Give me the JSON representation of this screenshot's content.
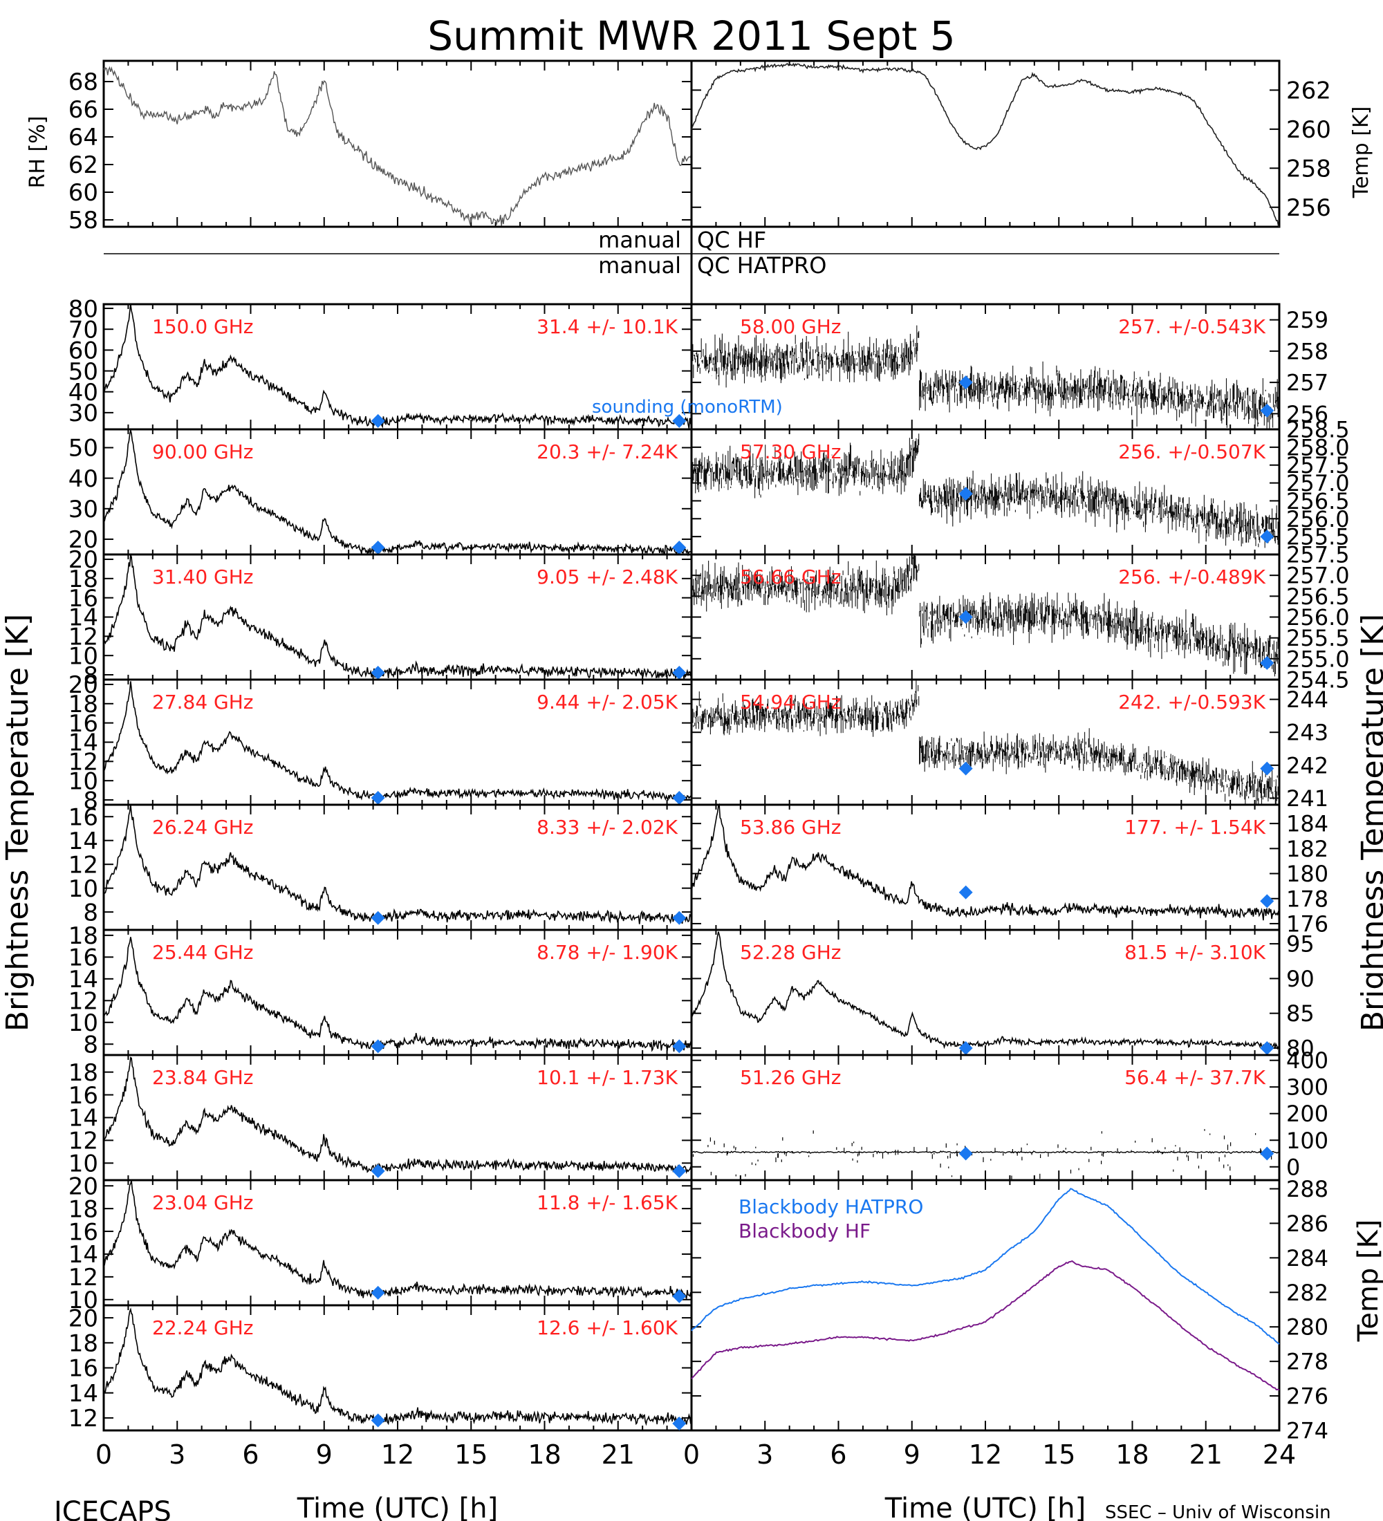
{
  "title": "Summit MWR 2011 Sept  5",
  "footer": {
    "left": "ICECAPS",
    "right": "SSEC – Univ of Wisconsin"
  },
  "time_axis": {
    "label": "Time (UTC) [h]",
    "ticks": [
      0,
      3,
      6,
      9,
      12,
      15,
      18,
      21,
      24
    ],
    "left_tick_labels": [
      "0",
      "3",
      "6",
      "9",
      "12",
      "15",
      "18",
      "21"
    ],
    "right_tick_labels": [
      "0",
      "3",
      "6",
      "9",
      "12",
      "15",
      "18",
      "21",
      "24"
    ]
  },
  "y_labels": {
    "left_bt": "Brightness Temperature [K]",
    "right_bt": "Brightness Temperature [K]",
    "rh": "RH [%]",
    "temp_top": "Temp [K]",
    "temp_bottom": "Temp [K]"
  },
  "qc": {
    "left1": "manual",
    "right1": "QC HF",
    "left2": "manual",
    "right2": "QC HATPRO"
  },
  "sounding_label": "sounding (monoRTM)",
  "colors": {
    "channel_label": "#ff2020",
    "sounding": "#1a78f0",
    "blackbody_hatpro": "#1a78f0",
    "blackbody_hf": "#7a1a8a"
  },
  "chart_data": [
    {
      "type": "line",
      "id": "rh",
      "xlim": [
        0,
        24
      ],
      "ylim": [
        57.5,
        69.5
      ],
      "yticks": [
        58,
        60,
        62,
        64,
        66,
        68
      ],
      "x": [
        0,
        0.5,
        1,
        1.5,
        2,
        2.5,
        3,
        3.5,
        4,
        4.5,
        5,
        5.5,
        6,
        6.5,
        7,
        7.5,
        8,
        8.5,
        9,
        9.5,
        10,
        10.5,
        11,
        11.5,
        12,
        12.5,
        13,
        13.5,
        14,
        14.5,
        15,
        15.5,
        16,
        16.5,
        17,
        17.5,
        18,
        18.5,
        19,
        19.5,
        20,
        20.5,
        21,
        21.5,
        22,
        22.5,
        23,
        23.5,
        24
      ],
      "values": [
        69,
        68.5,
        67,
        65.8,
        65.5,
        65.7,
        65.2,
        65.5,
        66,
        65.6,
        66.3,
        66,
        66.2,
        66.6,
        68.8,
        64.5,
        64.2,
        66,
        68.2,
        64.5,
        63.5,
        62.8,
        62,
        61.3,
        60.8,
        60.5,
        60,
        59.6,
        59.2,
        58.5,
        58,
        58.5,
        57.8,
        58.2,
        59.5,
        60.5,
        61,
        61.3,
        61.5,
        61.8,
        62,
        62.3,
        62.5,
        63,
        65,
        66.3,
        65.5,
        62,
        62.7
      ]
    },
    {
      "type": "line",
      "id": "temp_top",
      "xlim": [
        0,
        24
      ],
      "ylim": [
        255,
        263.5
      ],
      "yticks": [
        256,
        258,
        260,
        262
      ],
      "x": [
        0,
        0.5,
        1,
        1.5,
        2,
        3,
        4,
        5,
        6,
        7,
        8,
        9,
        9.5,
        10,
        10.5,
        11,
        11.5,
        12,
        12.5,
        13,
        13.5,
        14,
        14.5,
        15,
        16,
        17,
        18,
        19,
        20,
        20.5,
        21,
        21.5,
        22,
        22.5,
        23,
        23.5,
        24
      ],
      "values": [
        260,
        261.5,
        262.6,
        262.9,
        263,
        263.2,
        263.3,
        263.2,
        263.2,
        263,
        263.1,
        263,
        262.8,
        261.8,
        260.5,
        259.5,
        259,
        259.1,
        259.7,
        261.2,
        262.5,
        262.8,
        262.2,
        262.2,
        262.5,
        262,
        261.9,
        262.1,
        261.8,
        261.5,
        260.5,
        259.5,
        258.5,
        257.6,
        257.2,
        256.5,
        255
      ]
    },
    {
      "type": "line",
      "id": "150.0",
      "channel": "150.0 GHz",
      "stats": "31.4 +/-  10.1K",
      "ylim": [
        22,
        82
      ],
      "yticks": [
        30,
        40,
        50,
        60,
        70,
        80
      ],
      "base": 25,
      "peak": 82,
      "spread": 2,
      "sounding": [
        26,
        26
      ]
    },
    {
      "type": "line",
      "id": "90.00",
      "channel": "90.00 GHz",
      "stats": "20.3 +/-  7.24K",
      "ylim": [
        15,
        56
      ],
      "yticks": [
        20,
        30,
        40,
        50
      ],
      "base": 16,
      "peak": 56,
      "spread": 1.2,
      "sounding": [
        16,
        16
      ]
    },
    {
      "type": "line",
      "id": "31.40",
      "channel": "31.40 GHz",
      "stats": "9.05 +/- 2.48K",
      "ylim": [
        7.5,
        20.5
      ],
      "yticks": [
        8,
        10,
        12,
        14,
        16,
        18,
        20
      ],
      "base": 8,
      "peak": 20.5,
      "spread": 0.5,
      "sounding": [
        8,
        8
      ]
    },
    {
      "type": "line",
      "id": "27.84",
      "channel": "27.84 GHz",
      "stats": "9.44 +/- 2.05K",
      "ylim": [
        7.5,
        20.5
      ],
      "yticks": [
        8,
        10,
        12,
        14,
        16,
        18,
        20
      ],
      "base": 8.3,
      "peak": 20,
      "spread": 0.4,
      "sounding": [
        7.8,
        7.8
      ]
    },
    {
      "type": "line",
      "id": "26.24",
      "channel": "26.24 GHz",
      "stats": "8.33 +/- 2.02K",
      "ylim": [
        6.5,
        17
      ],
      "yticks": [
        8,
        10,
        12,
        14,
        16
      ],
      "base": 7.4,
      "peak": 17,
      "spread": 0.4,
      "sounding": [
        7.5,
        7.5
      ]
    },
    {
      "type": "line",
      "id": "25.44",
      "channel": "25.44 GHz",
      "stats": "8.78 +/- 1.90K",
      "ylim": [
        7,
        18.5
      ],
      "yticks": [
        8,
        10,
        12,
        14,
        16,
        18
      ],
      "base": 7.8,
      "peak": 18,
      "spread": 0.4,
      "sounding": [
        7.8,
        7.8
      ]
    },
    {
      "type": "line",
      "id": "23.84",
      "channel": "23.84 GHz",
      "stats": "10.1 +/- 1.73K",
      "ylim": [
        8.5,
        19.5
      ],
      "yticks": [
        10,
        12,
        14,
        16,
        18
      ],
      "base": 9.5,
      "peak": 19.5,
      "spread": 0.4,
      "sounding": [
        9.3,
        9.3
      ]
    },
    {
      "type": "line",
      "id": "23.04",
      "channel": "23.04 GHz",
      "stats": "11.8 +/- 1.65K",
      "ylim": [
        9.5,
        20.5
      ],
      "yticks": [
        10,
        12,
        14,
        16,
        18,
        20
      ],
      "base": 10.5,
      "peak": 20.5,
      "spread": 0.4,
      "sounding": [
        10.6,
        10.3
      ]
    },
    {
      "type": "line",
      "id": "22.24",
      "channel": "22.24 GHz",
      "stats": "12.6 +/- 1.60K",
      "ylim": [
        11,
        21
      ],
      "yticks": [
        12,
        14,
        16,
        18,
        20
      ],
      "base": 11.8,
      "peak": 21,
      "spread": 0.4,
      "sounding": [
        11.8,
        11.3
      ]
    },
    {
      "type": "scatter",
      "id": "58.00",
      "channel": "58.00 GHz",
      "stats": "257. +/-0.543K",
      "ylim": [
        255.5,
        259.5
      ],
      "yticks": [
        256,
        257,
        258,
        259
      ],
      "yticklabels": [
        "256",
        "257",
        "258",
        "259"
      ],
      "mean_early": 257.7,
      "mean_late": 256.8,
      "mean_end": 256.2,
      "spread": 0.45,
      "sounding": [
        257,
        256.1
      ]
    },
    {
      "type": "scatter",
      "id": "57.30",
      "channel": "57.30 GHz",
      "stats": "256. +/-0.507K",
      "ylim": [
        255,
        258.5
      ],
      "yticks": [
        255.5,
        256,
        256.5,
        257,
        257.5,
        258,
        258.5
      ],
      "yticklabels": [
        "255.5",
        "256.0",
        "256.5",
        "257.0",
        "257.5",
        "258.0",
        "258.5"
      ],
      "mean_early": 257.3,
      "mean_late": 256.6,
      "mean_end": 255.7,
      "spread": 0.4,
      "sounding": [
        256.7,
        255.5
      ]
    },
    {
      "type": "scatter",
      "id": "56.66",
      "channel": "56.66 GHz",
      "stats": "256. +/-0.489K",
      "ylim": [
        254.5,
        257.5
      ],
      "yticks": [
        254.5,
        255,
        255.5,
        256,
        256.5,
        257,
        257.5
      ],
      "yticklabels": [
        "254.5",
        "255.0",
        "255.5",
        "256.0",
        "256.5",
        "257.0",
        "257.5"
      ],
      "mean_early": 256.7,
      "mean_late": 256,
      "mean_end": 255.1,
      "spread": 0.35,
      "sounding": [
        256,
        254.9
      ]
    },
    {
      "type": "scatter",
      "id": "54.94",
      "channel": "54.94 GHz",
      "stats": "242. +/-0.593K",
      "ylim": [
        240.8,
        244.6
      ],
      "yticks": [
        241,
        242,
        243,
        244
      ],
      "yticklabels": [
        "241",
        "242",
        "243",
        "244"
      ],
      "mean_early": 243.5,
      "mean_late": 242.4,
      "mean_end": 241.2,
      "spread": 0.35,
      "sounding": [
        241.9,
        241.9
      ]
    },
    {
      "type": "line",
      "id": "53.86",
      "channel": "53.86 GHz",
      "stats": "177. +/- 1.54K",
      "ylim": [
        175.5,
        185.5
      ],
      "yticks": [
        176,
        178,
        180,
        182,
        184
      ],
      "yticklabels": [
        "176",
        "178",
        "180",
        "182",
        "184"
      ],
      "base": 176.8,
      "peak": 185.5,
      "spread": 0.4,
      "sounding": [
        178.5,
        177.8
      ]
    },
    {
      "type": "line",
      "id": "52.28",
      "channel": "52.28 GHz",
      "stats": "81.5 +/- 3.10K",
      "ylim": [
        79,
        97
      ],
      "yticks": [
        80,
        85,
        90,
        95
      ],
      "yticklabels": [
        "80",
        "85",
        "90",
        "95"
      ],
      "base": 80.3,
      "peak": 97,
      "spread": 0.4,
      "sounding": [
        79.8,
        79.8
      ]
    },
    {
      "type": "line",
      "id": "51.26",
      "channel": "51.26 GHz",
      "stats": "56.4 +/- 37.7K",
      "ylim": [
        -50,
        420
      ],
      "yticks": [
        0,
        100,
        200,
        300,
        400
      ],
      "yticklabels": [
        "0",
        "100",
        "200",
        "300",
        "400"
      ],
      "sounding": [
        50,
        50
      ]
    },
    {
      "type": "line",
      "id": "blackbody",
      "xlim": [
        0,
        24
      ],
      "ylim": [
        274,
        288.5
      ],
      "yticks": [
        274,
        276,
        278,
        280,
        282,
        284,
        286,
        288
      ],
      "legend": [
        "Blackbody HATPRO",
        "Blackbody HF"
      ],
      "x": [
        0,
        1,
        2,
        3,
        4,
        5,
        6,
        7,
        8,
        9,
        10,
        11,
        12,
        13,
        14,
        15,
        15.5,
        16,
        17,
        18,
        19,
        20,
        21,
        22,
        23,
        24
      ],
      "series": [
        {
          "name": "Blackbody HATPRO",
          "values": [
            279.8,
            281.1,
            281.6,
            281.9,
            282.2,
            282.4,
            282.5,
            282.6,
            282.5,
            282.4,
            282.6,
            282.8,
            283.3,
            284.5,
            285.5,
            287.4,
            288,
            287.6,
            287,
            285.7,
            284.3,
            283,
            282,
            281,
            280.2,
            279
          ]
        },
        {
          "name": "Blackbody HF",
          "values": [
            277,
            278.5,
            278.8,
            278.9,
            279,
            279.2,
            279.4,
            279.4,
            279.3,
            279.2,
            279.5,
            279.9,
            280.3,
            281.3,
            282.4,
            283.5,
            283.8,
            283.5,
            283.3,
            282.3,
            281.2,
            280,
            278.9,
            278,
            277.2,
            276.3
          ]
        }
      ]
    }
  ]
}
